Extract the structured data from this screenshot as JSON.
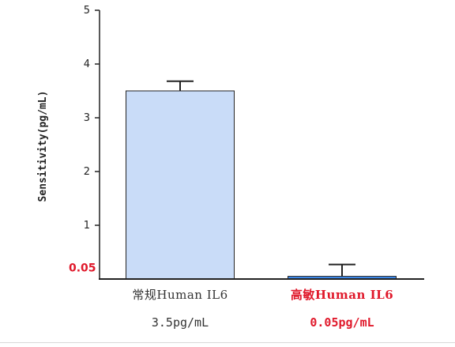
{
  "chart_data": {
    "type": "bar",
    "ylabel": "Sensitivity(pg/mL)",
    "ylim": [
      0,
      5
    ],
    "yticks": [
      1,
      2,
      3,
      4,
      5
    ],
    "categories": [
      "常规Human IL6",
      "高敏Human IL6"
    ],
    "value_labels": [
      "3.5pg/mL",
      "0.05pg/mL"
    ],
    "values": [
      3.5,
      0.05
    ],
    "errors": [
      0.18,
      0.22
    ],
    "bar_colors": [
      "#c9dcf8",
      "#3d8cf0"
    ],
    "label_colors": [
      "#333333",
      "#e0192b"
    ],
    "annotation": {
      "text": "0.05",
      "y": 0.05,
      "color": "#e0192b"
    },
    "grid": false
  }
}
